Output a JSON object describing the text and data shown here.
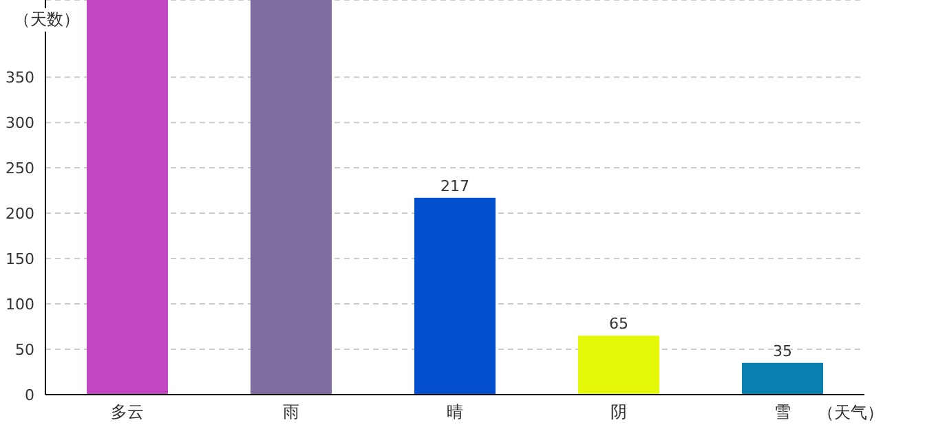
{
  "chart_data": {
    "type": "bar",
    "xlabel": "（天气）",
    "ylabel": "（天数）",
    "categories": [
      "多云",
      "雨",
      "晴",
      "阴",
      "雪"
    ],
    "values": [
      435,
      435,
      217,
      65,
      35
    ],
    "colors": [
      "#c047bf",
      "#7f6d9f",
      "#0250d0",
      "#e6f80a",
      "#0a80b0"
    ],
    "value_labels": [
      null,
      null,
      "217",
      "65",
      "35"
    ],
    "ylim": [
      0,
      435
    ],
    "yticks": [
      0,
      50,
      100,
      150,
      200,
      250,
      300,
      350
    ],
    "grid": "y"
  }
}
